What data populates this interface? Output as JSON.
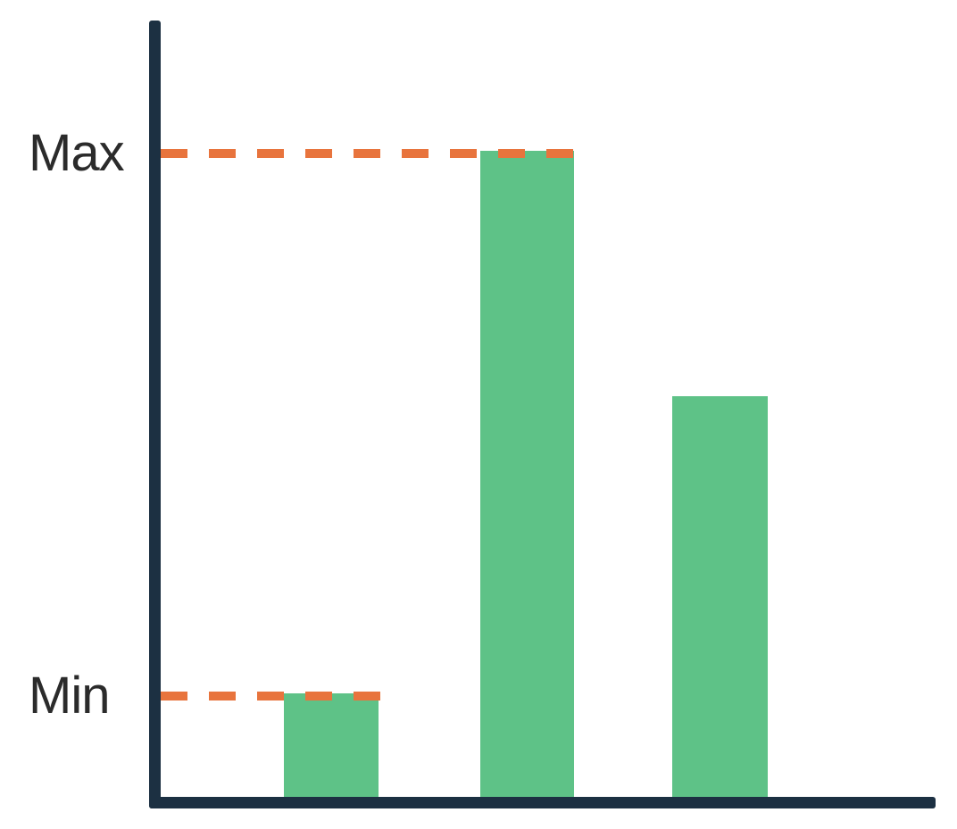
{
  "page": {
    "background": "#ffffff"
  },
  "chart_data": {
    "type": "bar",
    "title": "",
    "xlabel": "",
    "ylabel": "",
    "categories": [
      "",
      "",
      ""
    ],
    "values": [
      16,
      100,
      62
    ],
    "ylim": [
      0,
      120
    ],
    "grid": false,
    "legend": "none",
    "x_tick_labels": [],
    "y_tick_labels": [],
    "bar_color": "#5ec287",
    "axis_color": "#1c3042",
    "annotation_line_color": "#e8743d",
    "label_color": "#2b2b2b",
    "annotations": [
      {
        "label": "Max",
        "value": 100,
        "style": "dashed"
      },
      {
        "label": "Min",
        "value": 16,
        "style": "dashed"
      }
    ]
  }
}
